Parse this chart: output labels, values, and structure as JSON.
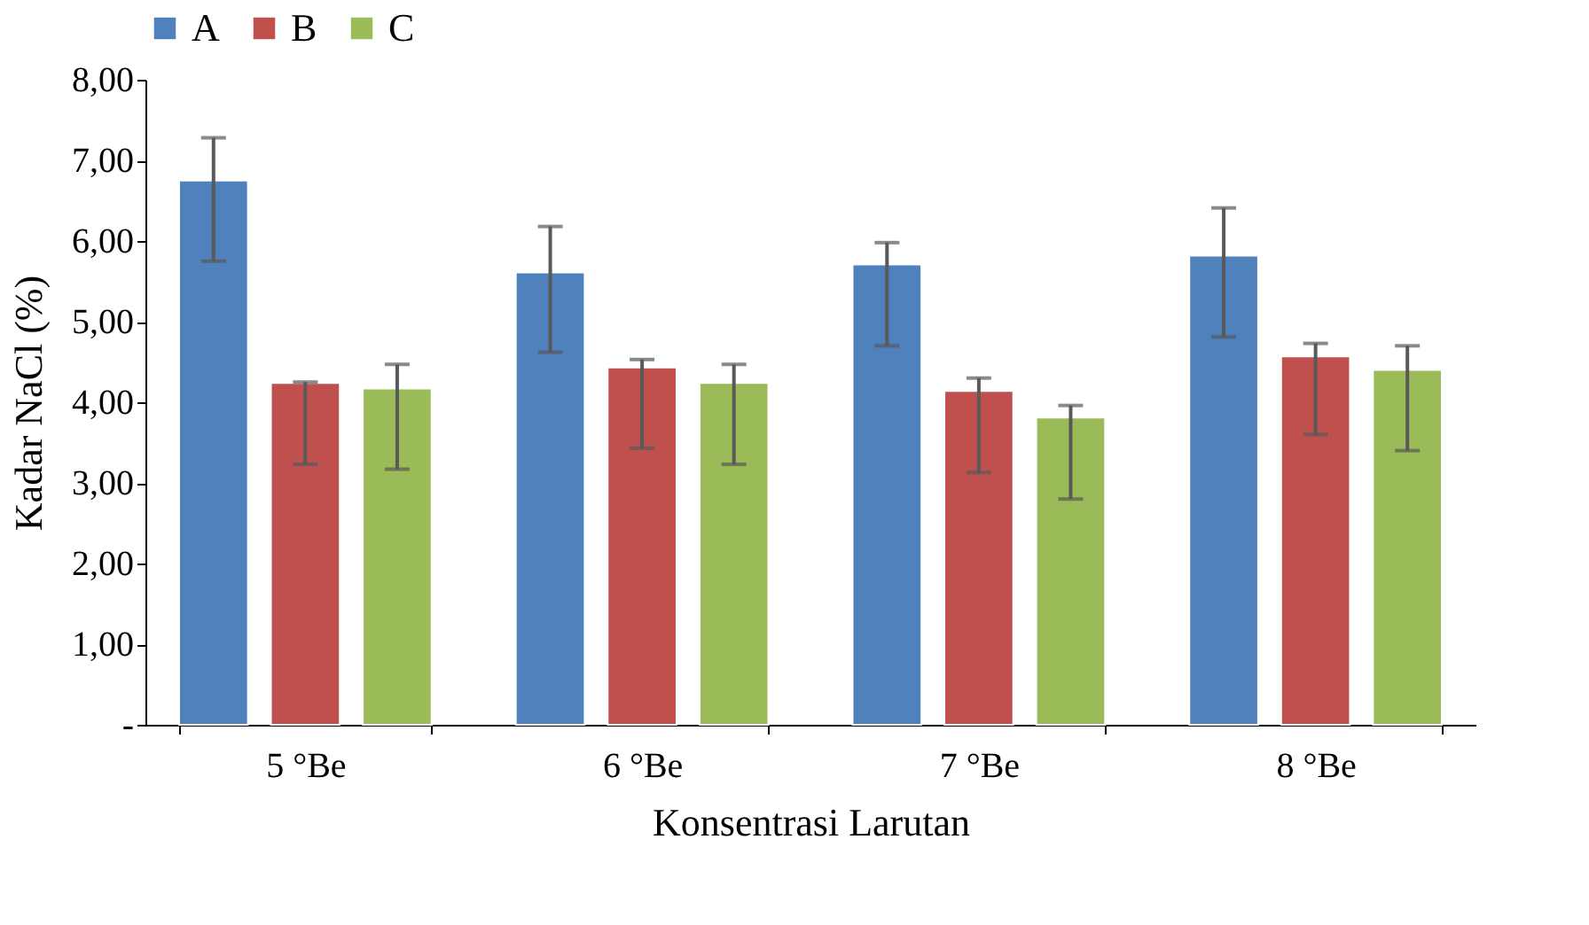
{
  "chart_data": {
    "type": "bar",
    "xlabel": "Konsentrasi Larutan",
    "ylabel": "Kadar NaCl (%)",
    "categories": [
      "5 °Be",
      "6 °Be",
      "7 °Be",
      "8 °Be"
    ],
    "series": [
      {
        "name": "A",
        "color": "#4f81bd",
        "values": [
          6.75,
          5.61,
          5.71,
          5.82
        ],
        "errors": [
          [
            5.75,
            7.28
          ],
          [
            4.62,
            6.18
          ],
          [
            4.7,
            5.98
          ],
          [
            4.81,
            6.41
          ]
        ]
      },
      {
        "name": "B",
        "color": "#c0504d",
        "values": [
          4.24,
          4.43,
          4.14,
          4.57
        ],
        "errors": [
          [
            3.23,
            4.25
          ],
          [
            3.43,
            4.53
          ],
          [
            3.13,
            4.3
          ],
          [
            3.6,
            4.73
          ]
        ]
      },
      {
        "name": "C",
        "color": "#9bbb59",
        "values": [
          4.17,
          4.24,
          3.81,
          4.4
        ],
        "errors": [
          [
            3.17,
            4.47
          ],
          [
            3.23,
            4.47
          ],
          [
            2.8,
            3.96
          ],
          [
            3.4,
            4.7
          ]
        ]
      }
    ],
    "ylim": [
      0,
      8
    ],
    "yticks": [
      {
        "value": 0,
        "label": "-"
      },
      {
        "value": 1,
        "label": "1,00"
      },
      {
        "value": 2,
        "label": "2,00"
      },
      {
        "value": 3,
        "label": "3,00"
      },
      {
        "value": 4,
        "label": "4,00"
      },
      {
        "value": 5,
        "label": "5,00"
      },
      {
        "value": 6,
        "label": "6,00"
      },
      {
        "value": 7,
        "label": "7,00"
      },
      {
        "value": 8,
        "label": "8,00"
      }
    ],
    "grid": false,
    "legend": "top"
  }
}
